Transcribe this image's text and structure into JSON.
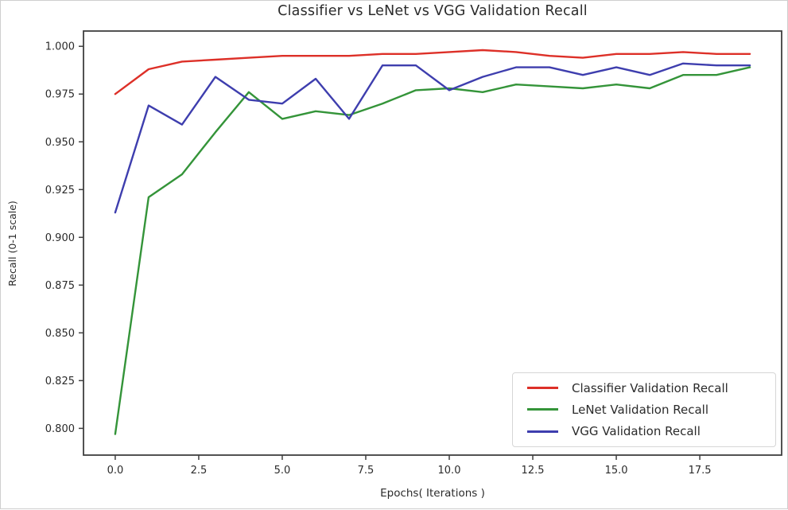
{
  "chart_data": {
    "type": "line",
    "title": "Classifier vs LeNet vs VGG Validation Recall",
    "xlabel": "Epochs( Iterations )",
    "ylabel": "Recall (0-1 scale)",
    "x": [
      0,
      1,
      2,
      3,
      4,
      5,
      6,
      7,
      8,
      9,
      10,
      11,
      12,
      13,
      14,
      15,
      16,
      17,
      18,
      19
    ],
    "series": [
      {
        "name": "Classifier Validation Recall",
        "color": "#dd3028",
        "values": [
          0.975,
          0.988,
          0.992,
          0.993,
          0.994,
          0.995,
          0.995,
          0.995,
          0.996,
          0.996,
          0.997,
          0.998,
          0.997,
          0.995,
          0.994,
          0.996,
          0.996,
          0.997,
          0.996,
          0.996
        ]
      },
      {
        "name": "LeNet Validation Recall",
        "color": "#349439",
        "values": [
          0.797,
          0.921,
          0.933,
          0.955,
          0.976,
          0.962,
          0.966,
          0.964,
          0.97,
          0.977,
          0.978,
          0.976,
          0.98,
          0.979,
          0.978,
          0.98,
          0.978,
          0.985,
          0.985,
          0.989
        ]
      },
      {
        "name": "VGG Validation Recall",
        "color": "#3e3eae",
        "values": [
          0.913,
          0.969,
          0.959,
          0.984,
          0.972,
          0.97,
          0.983,
          0.962,
          0.99,
          0.99,
          0.977,
          0.984,
          0.989,
          0.989,
          0.985,
          0.989,
          0.985,
          0.991,
          0.99,
          0.99
        ]
      }
    ],
    "xticks": {
      "values": [
        0,
        2.5,
        5,
        7.5,
        10,
        12.5,
        15,
        17.5
      ],
      "labels": [
        "0.0",
        "2.5",
        "5.0",
        "7.5",
        "10.0",
        "12.5",
        "15.0",
        "17.5"
      ]
    },
    "yticks": {
      "values": [
        0.8,
        0.825,
        0.85,
        0.875,
        0.9,
        0.925,
        0.95,
        0.975,
        1.0
      ],
      "labels": [
        "0.800",
        "0.825",
        "0.850",
        "0.875",
        "0.900",
        "0.925",
        "0.950",
        "0.975",
        "1.000"
      ]
    },
    "xlim": [
      -0.95,
      19.95
    ],
    "ylim": [
      0.786,
      1.008
    ],
    "grid": false,
    "legend_position": "lower right",
    "spine_color": "#3f3f3f",
    "tick_label_color": "#2b2b2b"
  }
}
